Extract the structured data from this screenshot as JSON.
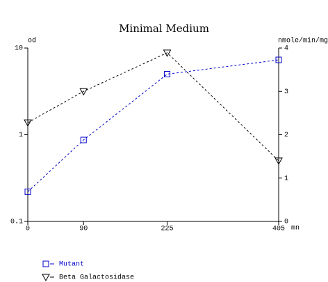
{
  "chart_data": {
    "type": "line",
    "title": "Minimal Medium",
    "xlabel": "mn",
    "ylabel": "od",
    "y2label": "nmole/min/mg",
    "x": [
      0,
      90,
      225,
      405
    ],
    "xlim": [
      0,
      405
    ],
    "xticks": [
      0,
      90,
      225,
      405
    ],
    "ylim": [
      0.1,
      10
    ],
    "yticks": [
      0.1,
      1,
      10
    ],
    "yscale": "log",
    "y2lim": [
      0,
      4
    ],
    "y2ticks": [
      0,
      1,
      2,
      3,
      4
    ],
    "legend": "bottom-left",
    "series": [
      {
        "name": "Mutant",
        "color": "#0000cc",
        "marker": "square",
        "axis": "y",
        "values": [
          0.22,
          0.87,
          5,
          7.3
        ]
      },
      {
        "name": "Beta Galactosidase",
        "color": "#000000",
        "marker": "triangle-down",
        "axis": "y2",
        "values": [
          2.28,
          3.0,
          3.89,
          1.4
        ]
      }
    ]
  }
}
